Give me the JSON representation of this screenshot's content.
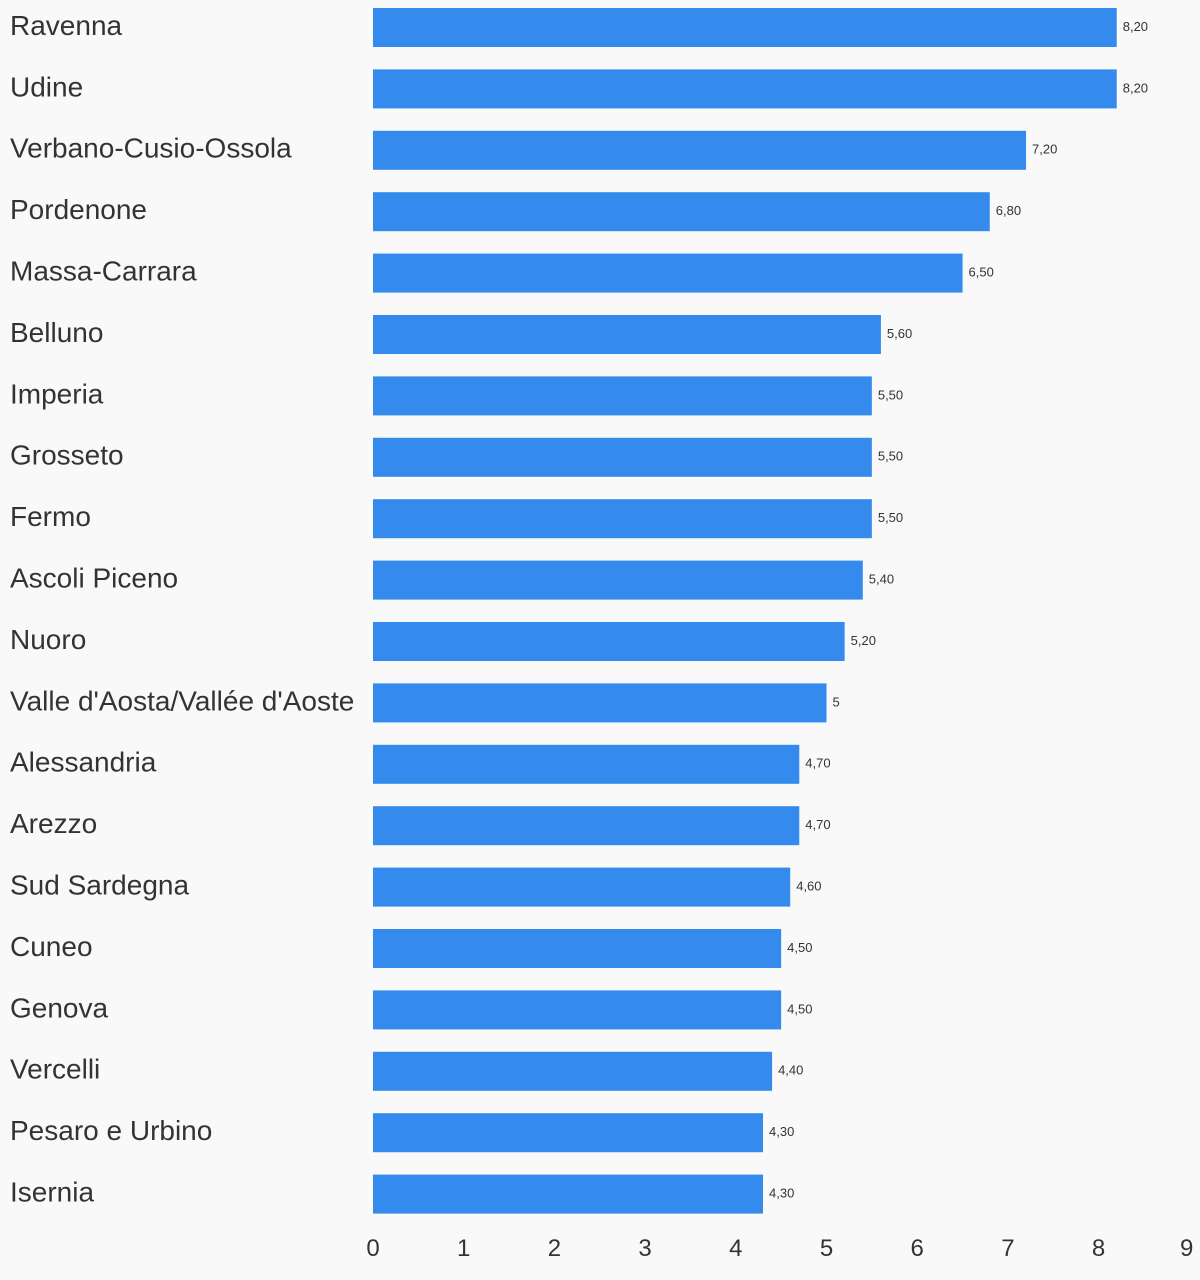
{
  "chart_data": {
    "type": "bar",
    "orientation": "horizontal",
    "categories": [
      "Ravenna",
      "Udine",
      "Verbano-Cusio-Ossola",
      "Pordenone",
      "Massa-Carrara",
      "Belluno",
      "Imperia",
      "Grosseto",
      "Fermo",
      "Ascoli Piceno",
      "Nuoro",
      "Valle d'Aosta/Vallée d'Aoste",
      "Alessandria",
      "Arezzo",
      "Sud Sardegna",
      "Cuneo",
      "Genova",
      "Vercelli",
      "Pesaro e Urbino",
      "Isernia"
    ],
    "values": [
      8.2,
      8.2,
      7.2,
      6.8,
      6.5,
      5.6,
      5.5,
      5.5,
      5.5,
      5.4,
      5.2,
      5.0,
      4.7,
      4.7,
      4.6,
      4.5,
      4.5,
      4.4,
      4.3,
      4.3
    ],
    "value_labels": [
      "8,20",
      "8,20",
      "7,20",
      "6,80",
      "6,50",
      "5,60",
      "5,50",
      "5,50",
      "5,50",
      "5,40",
      "5,20",
      "5",
      "4,70",
      "4,70",
      "4,60",
      "4,50",
      "4,50",
      "4,40",
      "4,30",
      "4,30"
    ],
    "x_ticks": [
      "0",
      "1",
      "2",
      "3",
      "4",
      "5",
      "6",
      "7",
      "8",
      "9"
    ],
    "xlim": [
      0,
      9
    ],
    "title": "",
    "xlabel": "",
    "ylabel": "",
    "grid": false,
    "bar_color": "#348bed",
    "background_color": "#f9f9f9"
  }
}
